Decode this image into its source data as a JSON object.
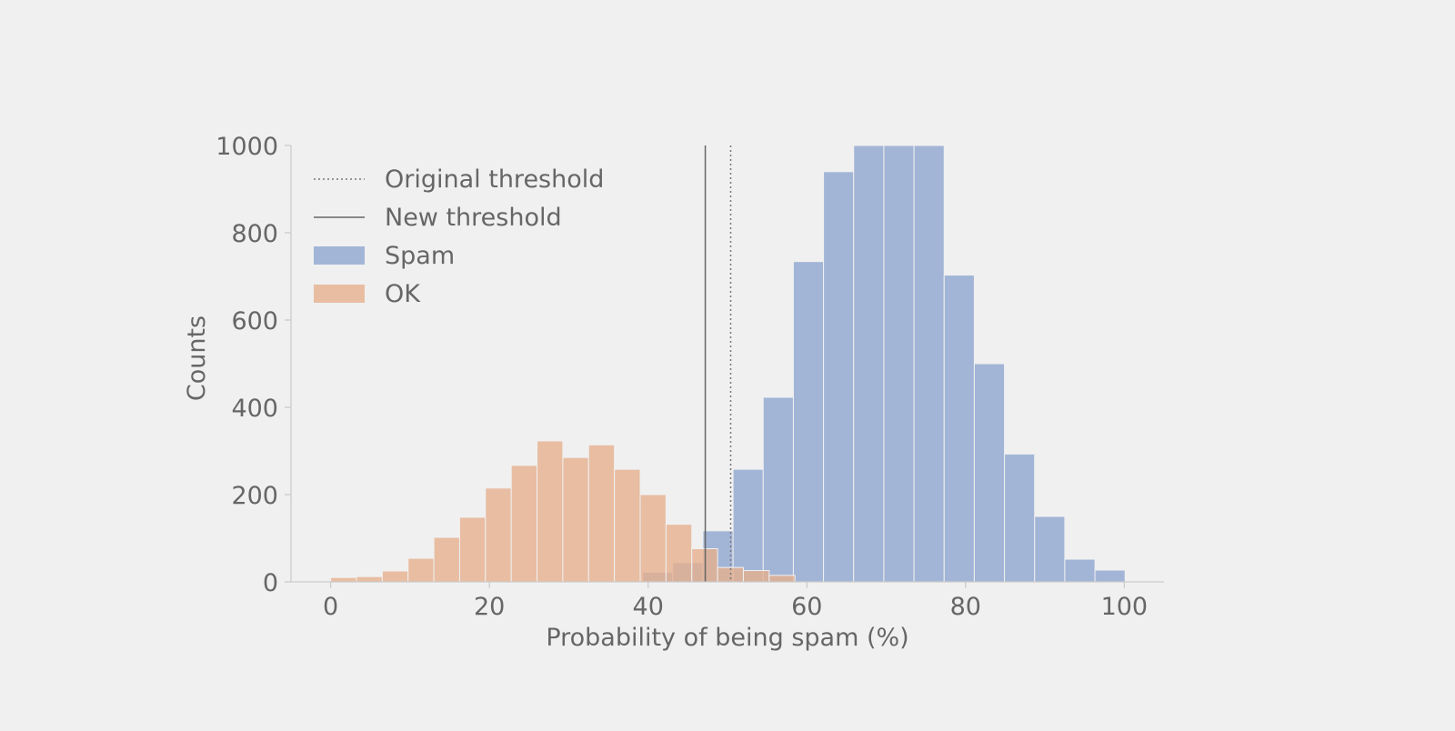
{
  "chart_data": {
    "type": "bar",
    "subtype": "overlapping histogram",
    "title": "",
    "xlabel": "Probability of being spam (%)",
    "ylabel": "Counts",
    "xlim": [
      -5,
      105
    ],
    "ylim": [
      0,
      1000
    ],
    "xticks": [
      0,
      20,
      40,
      60,
      80,
      100
    ],
    "yticks": [
      0,
      200,
      400,
      600,
      800,
      1000
    ],
    "grid": false,
    "legend_position": "top-left",
    "thresholds": [
      {
        "name": "Original threshold",
        "x": 50.4,
        "style": "dotted",
        "color": "#777777"
      },
      {
        "name": "New threshold",
        "x": 47.2,
        "style": "solid",
        "color": "#666666"
      }
    ],
    "series": [
      {
        "name": "Spam",
        "color": "#8fa6cf",
        "opacity": 0.8,
        "bin_edges": [
          39.3,
          43.1,
          46.9,
          50.7,
          54.5,
          58.3,
          62.1,
          65.9,
          69.7,
          73.5,
          77.3,
          81.1,
          84.9,
          88.7,
          92.5,
          96.3,
          100.1
        ],
        "counts": [
          22,
          44,
          117,
          258,
          423,
          734,
          940,
          1000,
          1000,
          1000,
          703,
          500,
          293,
          150,
          52,
          27
        ]
      },
      {
        "name": "OK",
        "color": "#e6b08f",
        "opacity": 0.8,
        "bin_edges": [
          0.0,
          3.25,
          6.5,
          9.75,
          13.0,
          16.25,
          19.5,
          22.75,
          26.0,
          29.25,
          32.5,
          35.75,
          39.0,
          42.25,
          45.5,
          48.75,
          52.0,
          55.25,
          58.5
        ],
        "counts": [
          10,
          12,
          25,
          54,
          102,
          148,
          215,
          267,
          323,
          285,
          314,
          258,
          200,
          132,
          76,
          33,
          26,
          15
        ]
      }
    ]
  }
}
